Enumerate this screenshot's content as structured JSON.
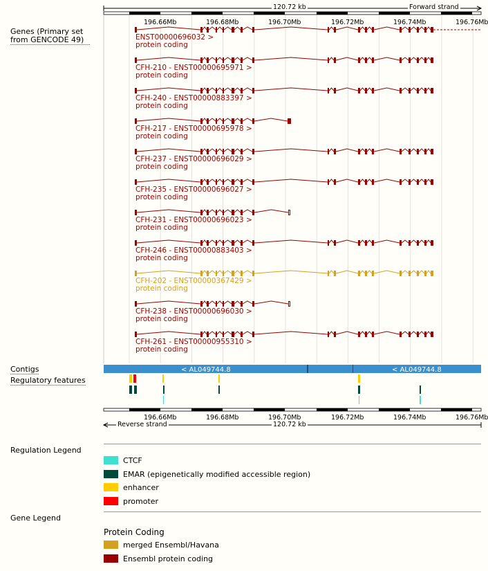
{
  "ruler_top": {
    "span": "120.72 kb",
    "strand": "Forward strand"
  },
  "ruler_bottom": {
    "span": "120.72 kb",
    "strand": "Reverse strand"
  },
  "scale_ticks": [
    "196.66Mb",
    "196.68Mb",
    "196.70Mb",
    "196.72Mb",
    "196.74Mb",
    "196.76Mb"
  ],
  "track_labels": {
    "genes": "Genes (Primary set from GENCODE 49)",
    "contigs": "Contigs",
    "regulatory": "Regulatory features"
  },
  "contig_labels": [
    "< AL049744.8",
    "< AL049744.8"
  ],
  "colors": {
    "ensembl_protein_coding": "#990000",
    "merged": "#d4a020",
    "ctcf": "#40e0d0",
    "emar": "#00493b",
    "enhancer": "#ffcc00",
    "promoter": "#ff0000",
    "contig": "#3a8fcc"
  },
  "transcripts": [
    {
      "name": "ENST00000696032 >",
      "biotype": "protein coding",
      "kind": "ensembl"
    },
    {
      "name": "CFH-210 - ENST00000695971 >",
      "biotype": "protein coding",
      "kind": "ensembl"
    },
    {
      "name": "CFH-240 - ENST00000883397 >",
      "biotype": "protein coding",
      "kind": "ensembl"
    },
    {
      "name": "CFH-217 - ENST00000695978 >",
      "biotype": "protein coding",
      "kind": "ensembl"
    },
    {
      "name": "CFH-237 - ENST00000696029 >",
      "biotype": "protein coding",
      "kind": "ensembl"
    },
    {
      "name": "CFH-235 - ENST00000696027 >",
      "biotype": "protein coding",
      "kind": "ensembl"
    },
    {
      "name": "CFH-231 - ENST00000696023 >",
      "biotype": "protein coding",
      "kind": "ensembl"
    },
    {
      "name": "CFH-246 - ENST00000883403 >",
      "biotype": "protein coding",
      "kind": "ensembl"
    },
    {
      "name": "CFH-202 - ENST00000367429 >",
      "biotype": "protein coding",
      "kind": "merged"
    },
    {
      "name": "CFH-238 - ENST00000696030 >",
      "biotype": "protein coding",
      "kind": "ensembl"
    },
    {
      "name": "CFH-261 - ENST00000955310 >",
      "biotype": "protein coding",
      "kind": "ensembl"
    }
  ],
  "regulation_legend": {
    "title": "Regulation Legend",
    "items": [
      {
        "label": "CTCF",
        "color": "#40e0d0"
      },
      {
        "label": "EMAR (epigenetically modified accessible region)",
        "color": "#00493b"
      },
      {
        "label": "enhancer",
        "color": "#ffcc00"
      },
      {
        "label": "promoter",
        "color": "#ff0000"
      }
    ]
  },
  "gene_legend": {
    "title": "Gene Legend",
    "subtitle": "Protein Coding",
    "items": [
      {
        "label": "merged Ensembl/Havana",
        "color": "#d4a020"
      },
      {
        "label": "Ensembl protein coding",
        "color": "#990000"
      }
    ]
  }
}
